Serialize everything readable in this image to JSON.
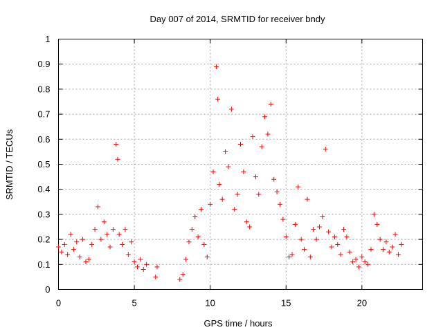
{
  "chart_data": {
    "type": "scatter",
    "title": "Day 007 of 2014, SRMTID for receiver bndy",
    "xlabel": "GPS time / hours",
    "ylabel": "SRMTID / TECUs",
    "xlim": [
      0,
      24
    ],
    "ylim": [
      0,
      1
    ],
    "xticks": [
      0,
      5,
      10,
      15,
      20
    ],
    "xtick_labels": [
      "0",
      "5",
      "10",
      "15",
      "20"
    ],
    "yticks": [
      0,
      0.1,
      0.2,
      0.3,
      0.4,
      0.5,
      0.6,
      0.7,
      0.8,
      0.9,
      1
    ],
    "ytick_labels": [
      "0",
      "0.1",
      "0.2",
      "0.3",
      "0.4",
      "0.5",
      "0.6",
      "0.7",
      "0.8",
      "0.9",
      "1"
    ],
    "grid": true,
    "marker": "+",
    "color": "#ff0000",
    "series": [
      {
        "name": "SRMTID",
        "x": [
          0.0,
          0.2,
          0.4,
          0.6,
          0.8,
          1.0,
          1.2,
          1.4,
          1.6,
          1.8,
          2.0,
          2.2,
          2.4,
          2.6,
          2.8,
          3.0,
          3.2,
          3.4,
          3.6,
          3.8,
          3.9,
          4.0,
          4.2,
          4.4,
          4.6,
          4.8,
          5.0,
          5.2,
          5.4,
          5.6,
          5.8,
          6.4,
          6.5,
          8.0,
          8.2,
          8.4,
          8.6,
          8.8,
          9.0,
          9.2,
          9.4,
          9.6,
          9.8,
          10.0,
          10.2,
          10.4,
          10.5,
          10.6,
          10.8,
          11.0,
          11.2,
          11.4,
          11.6,
          11.8,
          12.0,
          12.2,
          12.4,
          12.6,
          12.8,
          13.0,
          13.2,
          13.4,
          13.6,
          13.8,
          14.0,
          14.2,
          14.4,
          14.6,
          14.8,
          15.0,
          15.2,
          15.4,
          15.6,
          15.8,
          16.0,
          16.2,
          16.4,
          16.6,
          16.8,
          17.0,
          17.2,
          17.4,
          17.6,
          17.8,
          18.0,
          18.2,
          18.4,
          18.6,
          18.8,
          19.0,
          19.2,
          19.4,
          19.6,
          19.8,
          20.0,
          20.2,
          20.4,
          20.6,
          20.8,
          21.0,
          21.2,
          21.4,
          21.6,
          21.8,
          22.0,
          22.2,
          22.4,
          22.6
        ],
        "y": [
          0.17,
          0.15,
          0.18,
          0.14,
          0.22,
          0.16,
          0.19,
          0.13,
          0.2,
          0.11,
          0.12,
          0.18,
          0.24,
          0.33,
          0.2,
          0.27,
          0.22,
          0.17,
          0.24,
          0.58,
          0.52,
          0.22,
          0.18,
          0.24,
          0.14,
          0.19,
          0.11,
          0.09,
          0.12,
          0.08,
          0.1,
          0.05,
          0.09,
          0.04,
          0.06,
          0.12,
          0.19,
          0.24,
          0.29,
          0.21,
          0.32,
          0.18,
          0.13,
          0.34,
          0.47,
          0.89,
          0.76,
          0.42,
          0.36,
          0.55,
          0.49,
          0.72,
          0.32,
          0.38,
          0.58,
          0.47,
          0.27,
          0.25,
          0.61,
          0.45,
          0.38,
          0.57,
          0.69,
          0.62,
          0.74,
          0.44,
          0.39,
          0.34,
          0.28,
          0.21,
          0.13,
          0.14,
          0.26,
          0.41,
          0.2,
          0.16,
          0.36,
          0.13,
          0.24,
          0.2,
          0.25,
          0.29,
          0.56,
          0.23,
          0.17,
          0.21,
          0.18,
          0.14,
          0.24,
          0.21,
          0.15,
          0.11,
          0.12,
          0.09,
          0.13,
          0.11,
          0.1,
          0.16,
          0.3,
          0.26,
          0.2,
          0.16,
          0.19,
          0.15,
          0.17,
          0.22,
          0.14,
          0.18
        ]
      }
    ]
  }
}
